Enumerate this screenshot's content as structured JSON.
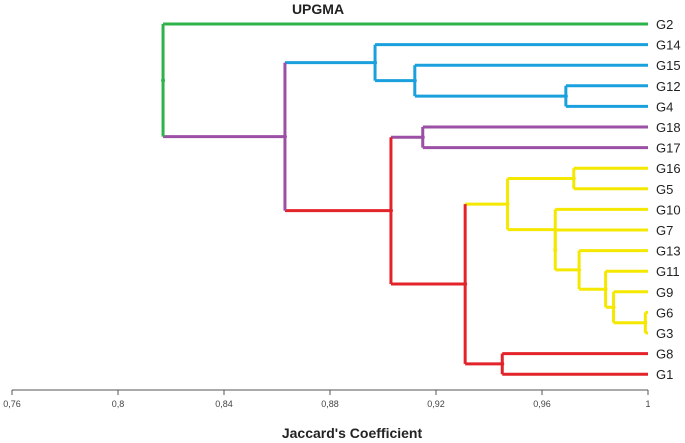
{
  "chart_data": {
    "type": "dendrogram",
    "title": "UPGMA",
    "xlabel": "Jaccard's Coefficient",
    "xlim": [
      0.76,
      1.0
    ],
    "x_ticks": [
      "0,76",
      "0,8",
      "0,84",
      "0,88",
      "0,92",
      "0,96",
      "1"
    ],
    "leaves": [
      "G2",
      "G14",
      "G15",
      "G12",
      "G4",
      "G18",
      "G17",
      "G16",
      "G5",
      "G10",
      "G7",
      "G13",
      "G11",
      "G9",
      "G6",
      "G3",
      "G8",
      "G1"
    ],
    "merges": [
      {
        "id": "m1",
        "children": [
          "G12",
          "G4"
        ],
        "height": 0.969,
        "color": "#1aa0dd"
      },
      {
        "id": "m2",
        "children": [
          "G15",
          "m1"
        ],
        "height": 0.912,
        "color": "#1aa0dd"
      },
      {
        "id": "m3",
        "children": [
          "G14",
          "m2"
        ],
        "height": 0.897,
        "color": "#1aa0dd"
      },
      {
        "id": "m4",
        "children": [
          "G18",
          "G17"
        ],
        "height": 0.915,
        "color": "#9b4fa5"
      },
      {
        "id": "m5",
        "children": [
          "G16",
          "G5"
        ],
        "height": 0.972,
        "color": "#f5e800"
      },
      {
        "id": "m6",
        "children": [
          "G6",
          "G3"
        ],
        "height": 0.999,
        "color": "#f5e800"
      },
      {
        "id": "m7",
        "children": [
          "G9",
          "m6"
        ],
        "height": 0.987,
        "color": "#f5e800"
      },
      {
        "id": "m8",
        "children": [
          "G11",
          "m7"
        ],
        "height": 0.984,
        "color": "#f5e800"
      },
      {
        "id": "m9",
        "children": [
          "G13",
          "m8"
        ],
        "height": 0.974,
        "color": "#f5e800"
      },
      {
        "id": "m10",
        "children": [
          "G7",
          "m9"
        ],
        "height": 0.965,
        "color": "#f5e800"
      },
      {
        "id": "m11",
        "children": [
          "G10",
          "m10"
        ],
        "height": 0.965,
        "color": "#f5e800"
      },
      {
        "id": "m12",
        "children": [
          "m5",
          "m11"
        ],
        "height": 0.947,
        "color": "#f5e800"
      },
      {
        "id": "m13",
        "children": [
          "G8",
          "G1"
        ],
        "height": 0.945,
        "color": "#e2232a"
      },
      {
        "id": "m14",
        "children": [
          "m12",
          "m13"
        ],
        "height": 0.931,
        "color": "#e2232a"
      },
      {
        "id": "m15",
        "children": [
          "m4",
          "m14"
        ],
        "height": 0.903,
        "color": "#e2232a"
      },
      {
        "id": "m16",
        "children": [
          "m3",
          "m15"
        ],
        "height": 0.863,
        "color": "#9b4fa5"
      },
      {
        "id": "m17",
        "children": [
          "G2",
          "m16"
        ],
        "height": 0.817,
        "color": "#2db34a"
      }
    ],
    "leaf_colors": {
      "G2": "#2db34a",
      "G14": "#1aa0dd",
      "G15": "#1aa0dd",
      "G12": "#1aa0dd",
      "G4": "#1aa0dd",
      "G18": "#9b4fa5",
      "G17": "#9b4fa5",
      "G16": "#f5e800",
      "G5": "#f5e800",
      "G10": "#f5e800",
      "G7": "#f5e800",
      "G13": "#f5e800",
      "G11": "#f5e800",
      "G9": "#f5e800",
      "G6": "#f5e800",
      "G3": "#f5e800",
      "G8": "#e2232a",
      "G1": "#e2232a"
    }
  }
}
